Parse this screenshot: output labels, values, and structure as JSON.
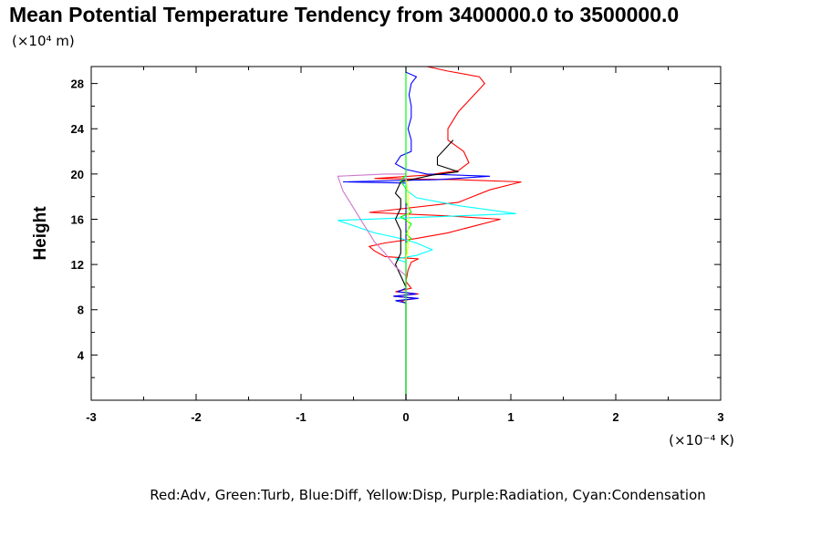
{
  "chart_data": {
    "type": "line",
    "title": "Mean Potential Temperature Tendency from 3400000.0 to 3500000.0",
    "y_unit_note": "(×10⁴ m)",
    "x_unit_note": "(×10⁻⁴ K)",
    "ylabel": "Height",
    "xlabel": "",
    "xlim": [
      -3,
      3
    ],
    "ylim": [
      0,
      29.5
    ],
    "x_ticks": [
      -3,
      -2,
      -1,
      0,
      1,
      2,
      3
    ],
    "x_tick_labels": [
      "-3",
      "-2",
      "-1",
      "0",
      "1",
      "2",
      "3"
    ],
    "y_ticks": [
      4,
      8,
      12,
      16,
      20,
      24,
      28
    ],
    "y_tick_labels": [
      "4",
      "8",
      "12",
      "16",
      "20",
      "24",
      "28"
    ],
    "legend_text": "Red:Adv, Green:Turb, Blue:Diff, Yellow:Disp, Purple:Radiation, Cyan:Condensation",
    "grid": false,
    "series": [
      {
        "color": "#ff0000",
        "points": [
          [
            0,
            0
          ],
          [
            0,
            8.6
          ],
          [
            -0.05,
            8.8
          ],
          [
            0.1,
            9.0
          ],
          [
            -0.12,
            9.2
          ],
          [
            0.12,
            9.4
          ],
          [
            -0.1,
            9.6
          ],
          [
            0.05,
            9.9
          ],
          [
            0,
            10.5
          ],
          [
            0.02,
            11.5
          ],
          [
            0.05,
            12.2
          ],
          [
            0.12,
            12.5
          ],
          [
            -0.2,
            12.7
          ],
          [
            -0.3,
            13.2
          ],
          [
            -0.35,
            13.6
          ],
          [
            -0.2,
            13.9
          ],
          [
            0.1,
            14.3
          ],
          [
            0.4,
            14.8
          ],
          [
            0.9,
            16.0
          ],
          [
            0.4,
            16.3
          ],
          [
            -0.35,
            16.6
          ],
          [
            0.5,
            17.5
          ],
          [
            0.8,
            18.6
          ],
          [
            1.1,
            19.3
          ],
          [
            0.5,
            19.5
          ],
          [
            -0.3,
            19.6
          ],
          [
            0.2,
            19.9
          ],
          [
            0.5,
            20.3
          ],
          [
            0.6,
            21.0
          ],
          [
            0.55,
            22.0
          ],
          [
            0.4,
            23.0
          ],
          [
            0.4,
            24.0
          ],
          [
            0.5,
            25.5
          ],
          [
            0.65,
            27.0
          ],
          [
            0.75,
            28.0
          ],
          [
            0.7,
            28.6
          ],
          [
            0.4,
            29.1
          ],
          [
            0.2,
            29.5
          ]
        ]
      },
      {
        "color": "#0000ff",
        "points": [
          [
            0,
            0
          ],
          [
            0,
            8.6
          ],
          [
            -0.1,
            8.8
          ],
          [
            0.12,
            9.0
          ],
          [
            -0.12,
            9.2
          ],
          [
            0.1,
            9.4
          ],
          [
            -0.08,
            9.6
          ],
          [
            0,
            9.9
          ],
          [
            0,
            19.2
          ],
          [
            -0.6,
            19.3
          ],
          [
            0.3,
            19.5
          ],
          [
            0.8,
            19.8
          ],
          [
            0.2,
            20.0
          ],
          [
            0,
            20.4
          ],
          [
            -0.1,
            20.9
          ],
          [
            -0.05,
            21.6
          ],
          [
            0.05,
            22.0
          ],
          [
            0.05,
            23.0
          ],
          [
            0.02,
            24.0
          ],
          [
            0.05,
            25.0
          ],
          [
            0.05,
            26.0
          ],
          [
            0.03,
            27.0
          ],
          [
            0.05,
            28.0
          ],
          [
            0.1,
            28.6
          ],
          [
            0,
            29.0
          ],
          [
            0,
            29.5
          ]
        ]
      },
      {
        "color": "#00ffff",
        "points": [
          [
            0,
            0
          ],
          [
            0,
            12.2
          ],
          [
            -0.1,
            12.5
          ],
          [
            0.1,
            12.8
          ],
          [
            0.25,
            13.3
          ],
          [
            0.1,
            13.9
          ],
          [
            -0.05,
            14.3
          ],
          [
            -0.3,
            14.8
          ],
          [
            -0.65,
            15.9
          ],
          [
            0.5,
            16.3
          ],
          [
            1.05,
            16.5
          ],
          [
            0.5,
            17.2
          ],
          [
            0.1,
            17.9
          ],
          [
            0,
            18.6
          ],
          [
            0,
            29.5
          ]
        ]
      },
      {
        "color": "#000000",
        "points": [
          [
            0,
            0
          ],
          [
            0,
            10.0
          ],
          [
            -0.05,
            11.0
          ],
          [
            -0.1,
            12.0
          ],
          [
            -0.05,
            13.0
          ],
          [
            -0.05,
            15.0
          ],
          [
            -0.1,
            16.0
          ],
          [
            -0.05,
            17.0
          ],
          [
            -0.05,
            17.8
          ],
          [
            -0.1,
            18.3
          ],
          [
            -0.05,
            19.3
          ],
          [
            0.25,
            19.9
          ],
          [
            0.5,
            20.2
          ],
          [
            0.3,
            20.8
          ],
          [
            0.3,
            21.5
          ],
          [
            0.45,
            23.0
          ]
        ]
      },
      {
        "color": "#cc77cc",
        "points": [
          [
            0,
            0
          ],
          [
            0,
            11.0
          ],
          [
            -0.1,
            11.8
          ],
          [
            -0.2,
            13.0
          ],
          [
            -0.3,
            14.0
          ],
          [
            -0.4,
            15.5
          ],
          [
            -0.5,
            17.0
          ],
          [
            -0.6,
            18.5
          ],
          [
            -0.65,
            19.8
          ],
          [
            -0.2,
            20.0
          ],
          [
            0,
            20.0
          ]
        ]
      },
      {
        "color": "#00ff00",
        "points": [
          [
            0,
            0
          ],
          [
            0,
            13.9
          ],
          [
            0.05,
            14.3
          ],
          [
            0,
            14.7
          ],
          [
            0.05,
            15.6
          ],
          [
            -0.05,
            16.2
          ],
          [
            0.05,
            16.6
          ],
          [
            0,
            17.5
          ],
          [
            0,
            18.7
          ],
          [
            -0.05,
            19.4
          ],
          [
            0,
            19.9
          ],
          [
            0,
            29.5
          ]
        ]
      },
      {
        "color": "#ffff00",
        "points": [
          [
            0,
            12.5
          ],
          [
            0.02,
            13.5
          ],
          [
            0.02,
            15.0
          ],
          [
            0.02,
            16.5
          ],
          [
            0.02,
            18.5
          ],
          [
            0,
            19.5
          ]
        ]
      }
    ]
  }
}
